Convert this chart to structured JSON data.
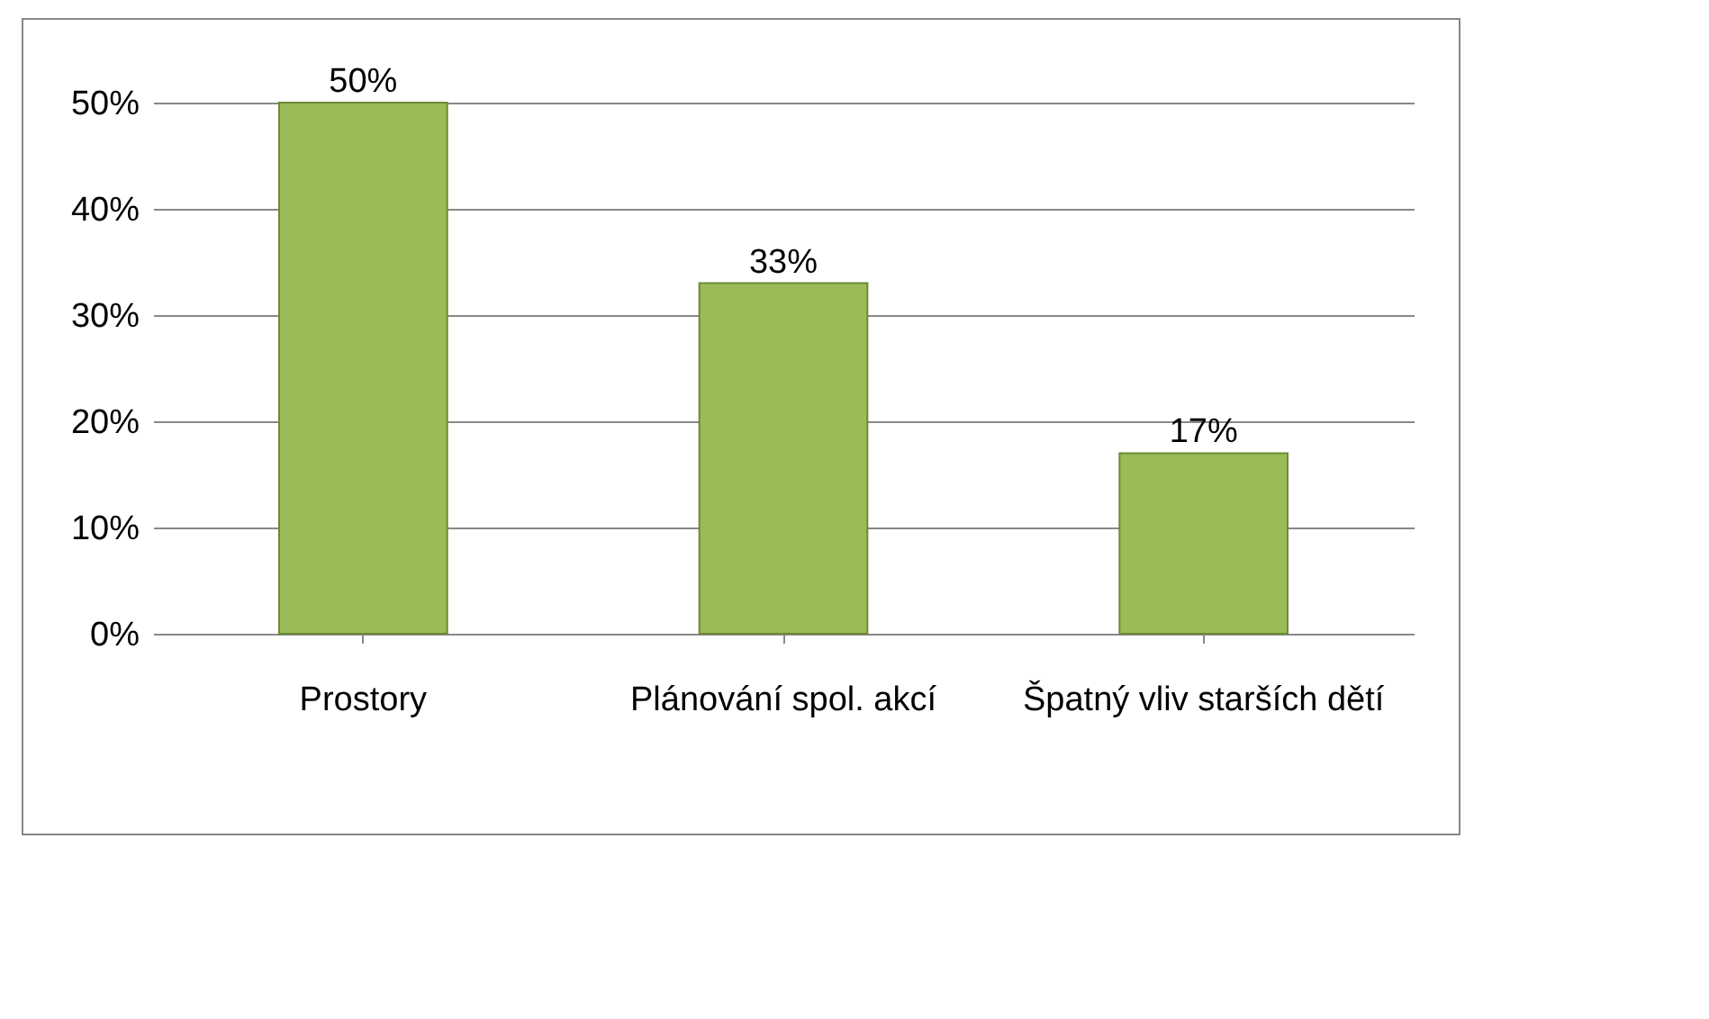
{
  "chart_data": {
    "type": "bar",
    "categories": [
      "Prostory",
      "Plánování spol. akcí",
      "Špatný vliv starších dětí"
    ],
    "values": [
      50,
      33,
      17
    ],
    "color": "#9bbb59",
    "value_labels": [
      "50%",
      "33%",
      "17%"
    ],
    "ylim": [
      0,
      50
    ],
    "yticks": [
      {
        "value": 0,
        "label": "0%"
      },
      {
        "value": 10,
        "label": "10%"
      },
      {
        "value": 20,
        "label": "20%"
      },
      {
        "value": 30,
        "label": "30%"
      },
      {
        "value": 40,
        "label": "40%"
      },
      {
        "value": 50,
        "label": "50%"
      }
    ],
    "grid": "y"
  }
}
